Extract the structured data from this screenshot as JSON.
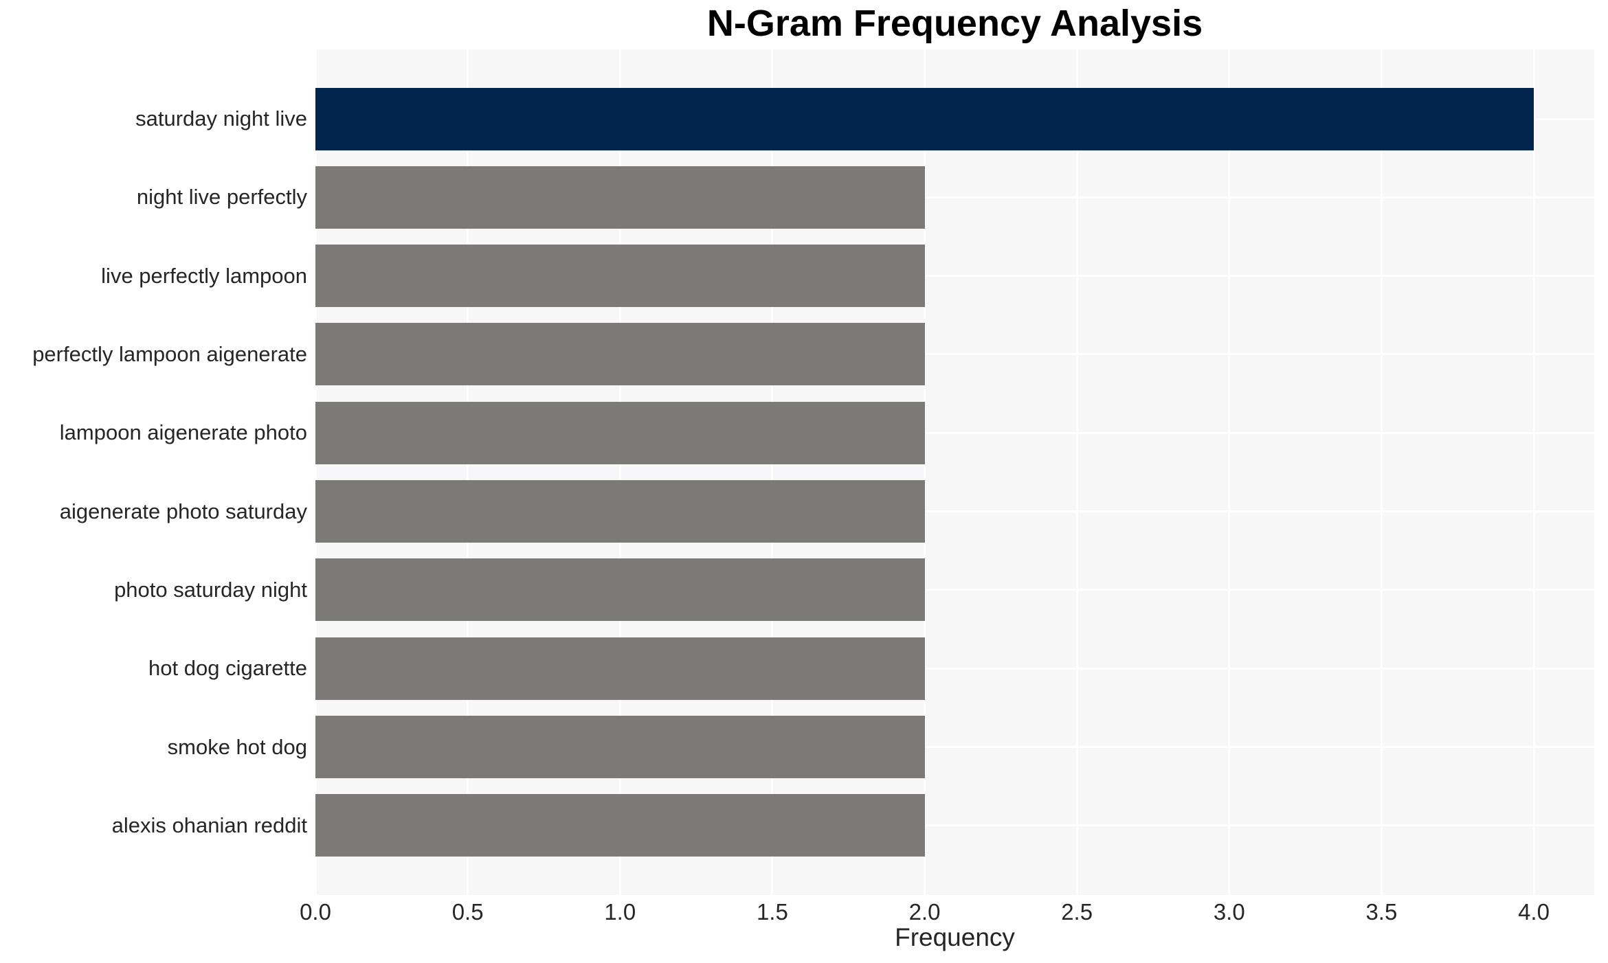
{
  "chart_data": {
    "type": "bar",
    "orientation": "horizontal",
    "title": "N-Gram Frequency Analysis",
    "xlabel": "Frequency",
    "ylabel": "",
    "categories": [
      "saturday night live",
      "night live perfectly",
      "live perfectly lampoon",
      "perfectly lampoon aigenerate",
      "lampoon aigenerate photo",
      "aigenerate photo saturday",
      "photo saturday night",
      "hot dog cigarette",
      "smoke hot dog",
      "alexis ohanian reddit"
    ],
    "values": [
      4,
      2,
      2,
      2,
      2,
      2,
      2,
      2,
      2,
      2
    ],
    "bar_colors": [
      "#01254D",
      "#7B7A77",
      "#7B7A77",
      "#7B7A77",
      "#7B7A77",
      "#7B7A77",
      "#7B7A77",
      "#7B7A77",
      "#7B7A77",
      "#7B7A77"
    ],
    "xticks": [
      0,
      0.5,
      1,
      1.5,
      2,
      2.5,
      3,
      3.5,
      4
    ],
    "xtick_labels": [
      "0.0",
      "0.5",
      "1.0",
      "1.5",
      "2.0",
      "2.5",
      "3.0",
      "3.5",
      "4.0"
    ],
    "xlim": [
      0,
      4.2
    ],
    "grid": true,
    "legend": false,
    "plot_background": "#F7F7F7",
    "grid_color": "#FFFFFF",
    "text_color": "#262626",
    "title_color": "#000000"
  }
}
